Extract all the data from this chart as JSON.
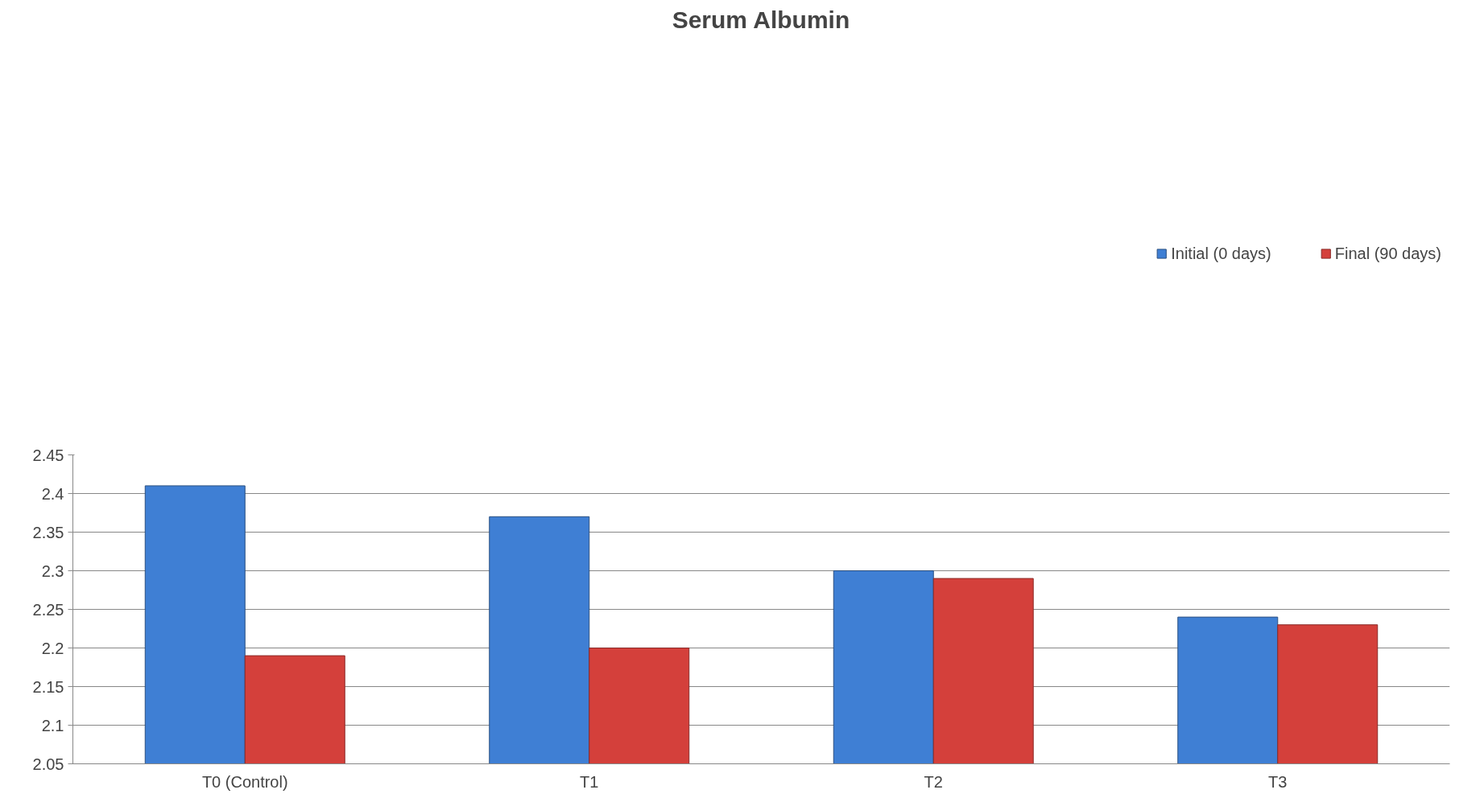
{
  "chart_data": {
    "type": "bar",
    "title": "Serum Albumin",
    "categories": [
      "T0 (Control)",
      "T1",
      "T2",
      "T3"
    ],
    "series": [
      {
        "name": "Initial (0 days)",
        "color": "#3f7fd4",
        "values": [
          2.41,
          2.37,
          2.3,
          2.24
        ]
      },
      {
        "name": "Final (90 days)",
        "color": "#d4403b",
        "values": [
          2.19,
          2.2,
          2.29,
          2.23
        ]
      }
    ],
    "ylim": [
      2.05,
      2.45
    ],
    "yticks": [
      2.05,
      2.1,
      2.15,
      2.2,
      2.25,
      2.3,
      2.35,
      2.4,
      2.45
    ],
    "grid": "y",
    "legend": "top right"
  }
}
